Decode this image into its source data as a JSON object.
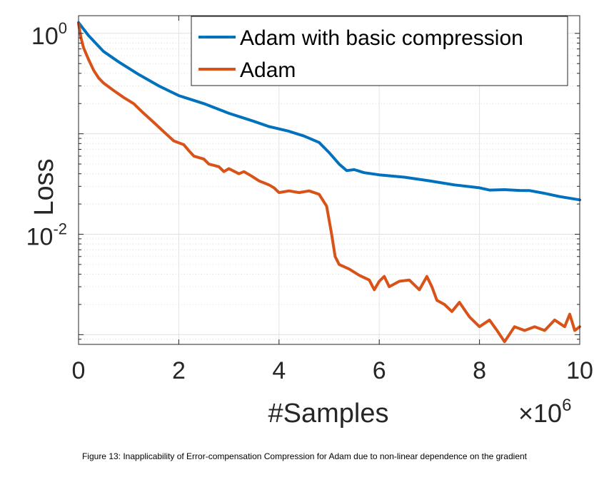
{
  "chart_data": {
    "type": "line",
    "title": "",
    "xlabel": "#Samples",
    "ylabel": "Loss",
    "x_multiplier_label": {
      "base": "10",
      "exponent": "6"
    },
    "xlim": [
      0,
      10
    ],
    "ylim": [
      0.0008,
      1.5
    ],
    "yscale": "log",
    "grid": true,
    "legend_position": "top-right",
    "x_ticks": [
      "0",
      "2",
      "4",
      "6",
      "8",
      "10"
    ],
    "y_ticks": [
      {
        "base": "10",
        "exponent": "0"
      },
      {
        "base": "10",
        "exponent": "-2"
      }
    ],
    "series": [
      {
        "name": "Adam with basic compression",
        "color": "#0072BD",
        "x": [
          0,
          0.2,
          0.5,
          0.8,
          1.2,
          1.6,
          2.0,
          2.5,
          3.0,
          3.5,
          3.8,
          4.2,
          4.5,
          4.8,
          5.0,
          5.2,
          5.35,
          5.5,
          5.7,
          6.0,
          6.5,
          7.0,
          7.5,
          8.0,
          8.2,
          8.5,
          8.8,
          9.0,
          9.3,
          9.6,
          10.0
        ],
        "y": [
          1.28,
          0.95,
          0.66,
          0.52,
          0.39,
          0.3,
          0.24,
          0.2,
          0.16,
          0.133,
          0.118,
          0.106,
          0.095,
          0.082,
          0.065,
          0.05,
          0.043,
          0.044,
          0.041,
          0.039,
          0.037,
          0.034,
          0.031,
          0.029,
          0.0275,
          0.0278,
          0.0273,
          0.0272,
          0.0255,
          0.0237,
          0.022
        ]
      },
      {
        "name": "Adam",
        "color": "#D95319",
        "x": [
          0,
          0.05,
          0.1,
          0.2,
          0.3,
          0.4,
          0.5,
          0.7,
          0.9,
          1.1,
          1.3,
          1.5,
          1.7,
          1.9,
          2.1,
          2.2,
          2.3,
          2.5,
          2.6,
          2.8,
          2.9,
          3.0,
          3.2,
          3.3,
          3.45,
          3.6,
          3.8,
          3.9,
          4.0,
          4.2,
          4.4,
          4.6,
          4.8,
          4.95,
          5.05,
          5.12,
          5.2,
          5.4,
          5.6,
          5.8,
          5.9,
          6.0,
          6.1,
          6.2,
          6.4,
          6.6,
          6.8,
          6.95,
          7.05,
          7.15,
          7.3,
          7.45,
          7.6,
          7.8,
          8.0,
          8.2,
          8.35,
          8.5,
          8.7,
          8.9,
          9.1,
          9.3,
          9.5,
          9.7,
          9.8,
          9.9,
          10.0
        ],
        "y": [
          1.25,
          0.9,
          0.72,
          0.55,
          0.43,
          0.36,
          0.32,
          0.27,
          0.23,
          0.2,
          0.16,
          0.13,
          0.105,
          0.085,
          0.078,
          0.068,
          0.06,
          0.056,
          0.05,
          0.047,
          0.042,
          0.045,
          0.04,
          0.042,
          0.038,
          0.034,
          0.031,
          0.029,
          0.026,
          0.027,
          0.026,
          0.027,
          0.025,
          0.019,
          0.01,
          0.006,
          0.005,
          0.0045,
          0.0039,
          0.0035,
          0.0028,
          0.0034,
          0.0038,
          0.003,
          0.0034,
          0.0035,
          0.0028,
          0.0038,
          0.003,
          0.0022,
          0.002,
          0.0017,
          0.0021,
          0.0015,
          0.0012,
          0.0014,
          0.0011,
          0.00085,
          0.0012,
          0.0011,
          0.0012,
          0.0011,
          0.0014,
          0.0012,
          0.0016,
          0.0011,
          0.0012
        ]
      }
    ]
  },
  "caption": "Figure 13: Inapplicability of Error-compensation Compression for Adam due to non-linear dependence on the gradient"
}
